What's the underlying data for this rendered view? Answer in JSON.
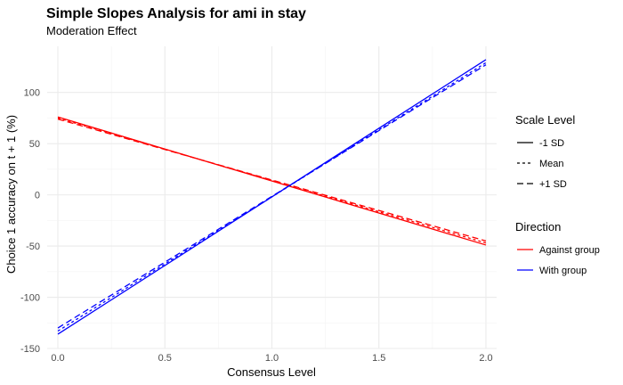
{
  "chart_data": {
    "type": "line",
    "title": "Simple Slopes Analysis for ami in stay",
    "subtitle": "Moderation Effect",
    "xlabel": "Consensus Level",
    "ylabel": "Choice 1 accuracy on t + 1 (%)",
    "xlim": [
      -0.05,
      2.05
    ],
    "ylim": [
      -150,
      145
    ],
    "x_ticks": [
      0.0,
      0.5,
      1.0,
      1.5,
      2.0
    ],
    "x_tick_labels": [
      "0.0",
      "0.5",
      "1.0",
      "1.5",
      "2.0"
    ],
    "y_ticks": [
      -150,
      -100,
      -50,
      0,
      50,
      100
    ],
    "y_tick_labels": [
      "-150",
      "-100",
      "-50",
      "0",
      "50",
      "100"
    ],
    "grid": true,
    "legend_placement": "right",
    "legends": [
      {
        "title": "Scale Level",
        "kind": "linetype",
        "entries": [
          {
            "label": "-1 SD",
            "dash": "solid"
          },
          {
            "label": "Mean",
            "dash": "dotted"
          },
          {
            "label": "+1 SD",
            "dash": "dashed"
          }
        ]
      },
      {
        "title": "Direction",
        "kind": "color",
        "entries": [
          {
            "label": "Against group",
            "color": "#ff0000"
          },
          {
            "label": "With group",
            "color": "#0000ff"
          }
        ]
      }
    ],
    "series": [
      {
        "direction": "Against group",
        "scale": "-1 SD",
        "color": "#ff0000",
        "dash": "solid",
        "x": [
          0.0,
          2.0
        ],
        "y": [
          76,
          -49
        ]
      },
      {
        "direction": "Against group",
        "scale": "Mean",
        "color": "#ff0000",
        "dash": "dotted",
        "x": [
          0.0,
          2.0
        ],
        "y": [
          75,
          -47
        ]
      },
      {
        "direction": "Against group",
        "scale": "+1 SD",
        "color": "#ff0000",
        "dash": "dashed",
        "x": [
          0.0,
          2.0
        ],
        "y": [
          74,
          -45
        ]
      },
      {
        "direction": "With group",
        "scale": "-1 SD",
        "color": "#0000ff",
        "dash": "solid",
        "x": [
          0.0,
          2.0
        ],
        "y": [
          -136,
          132
        ]
      },
      {
        "direction": "With group",
        "scale": "Mean",
        "color": "#0000ff",
        "dash": "dotted",
        "x": [
          0.0,
          2.0
        ],
        "y": [
          -133,
          129
        ]
      },
      {
        "direction": "With group",
        "scale": "+1 SD",
        "color": "#0000ff",
        "dash": "dashed",
        "x": [
          0.0,
          2.0
        ],
        "y": [
          -130,
          127
        ]
      }
    ]
  }
}
